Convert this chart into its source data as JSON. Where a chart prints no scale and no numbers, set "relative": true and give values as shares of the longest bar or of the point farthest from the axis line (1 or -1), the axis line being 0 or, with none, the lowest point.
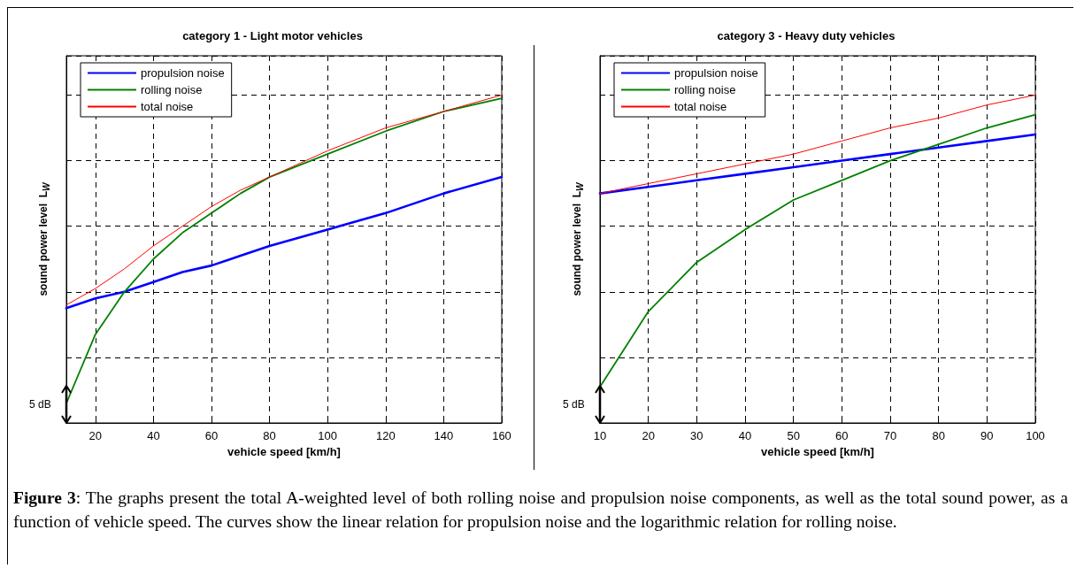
{
  "chart_data": [
    {
      "type": "line",
      "title": "category 1 - Light motor vehicles",
      "xlabel": "vehicle speed [km/h]",
      "ylabel": "sound power level  L$_{W}$",
      "relative": true,
      "x": [
        10,
        20,
        30,
        40,
        50,
        60,
        70,
        80,
        100,
        120,
        140,
        160
      ],
      "xlim": [
        10,
        160
      ],
      "xticks": [
        20,
        40,
        60,
        80,
        100,
        120,
        140,
        160
      ],
      "grid": true,
      "legend": "top left",
      "marker": "none",
      "line_style": "solid",
      "annotations": [
        "5 dB"
      ],
      "series": [
        {
          "name": "propulsion noise",
          "color": "#0000ff",
          "values": [
            0.35,
            0.38,
            0.4,
            0.43,
            0.46,
            0.48,
            0.51,
            0.54,
            0.59,
            0.64,
            0.7,
            0.75
          ]
        },
        {
          "name": "rolling noise",
          "color": "#008000",
          "values": [
            0.06,
            0.27,
            0.4,
            0.5,
            0.58,
            0.64,
            0.7,
            0.75,
            0.82,
            0.89,
            0.95,
            0.99
          ]
        },
        {
          "name": "total noise",
          "color": "#ff0000",
          "values": [
            0.36,
            0.41,
            0.47,
            0.54,
            0.6,
            0.66,
            0.71,
            0.75,
            0.83,
            0.9,
            0.95,
            1
          ]
        }
      ]
    },
    {
      "type": "line",
      "title": "category 3 - Heavy duty vehicles",
      "xlabel": "vehicle speed [km/h]",
      "ylabel": "sound power level  L$_{W}$",
      "relative": true,
      "x": [
        10,
        20,
        30,
        40,
        50,
        60,
        70,
        80,
        90,
        100
      ],
      "xlim": [
        10,
        100
      ],
      "xticks": [
        10,
        20,
        30,
        40,
        50,
        60,
        70,
        80,
        90,
        100
      ],
      "grid": true,
      "legend": "top left",
      "marker": "none",
      "line_style": "solid",
      "annotations": [
        "5 dB",
        "Figure 3: The graphs present the total A-weighted level of both rolling noise and propulsion noise components, as well as the total sound power, as a function of vehicle speed. The curves show the linear relation for propulsion noise and the logarithmic relation for rolling noise."
      ],
      "series": [
        {
          "name": "propulsion noise",
          "color": "#0000ff",
          "values": [
            0.7,
            0.72,
            0.74,
            0.76,
            0.78,
            0.8,
            0.82,
            0.84,
            0.86,
            0.88
          ]
        },
        {
          "name": "rolling noise",
          "color": "#008000",
          "values": [
            0.11,
            0.34,
            0.49,
            0.59,
            0.68,
            0.74,
            0.8,
            0.85,
            0.9,
            0.94
          ]
        },
        {
          "name": "total noise",
          "color": "#ff0000",
          "values": [
            0.7,
            0.73,
            0.76,
            0.79,
            0.82,
            0.86,
            0.9,
            0.93,
            0.97,
            1
          ]
        }
      ]
    }
  ]
}
